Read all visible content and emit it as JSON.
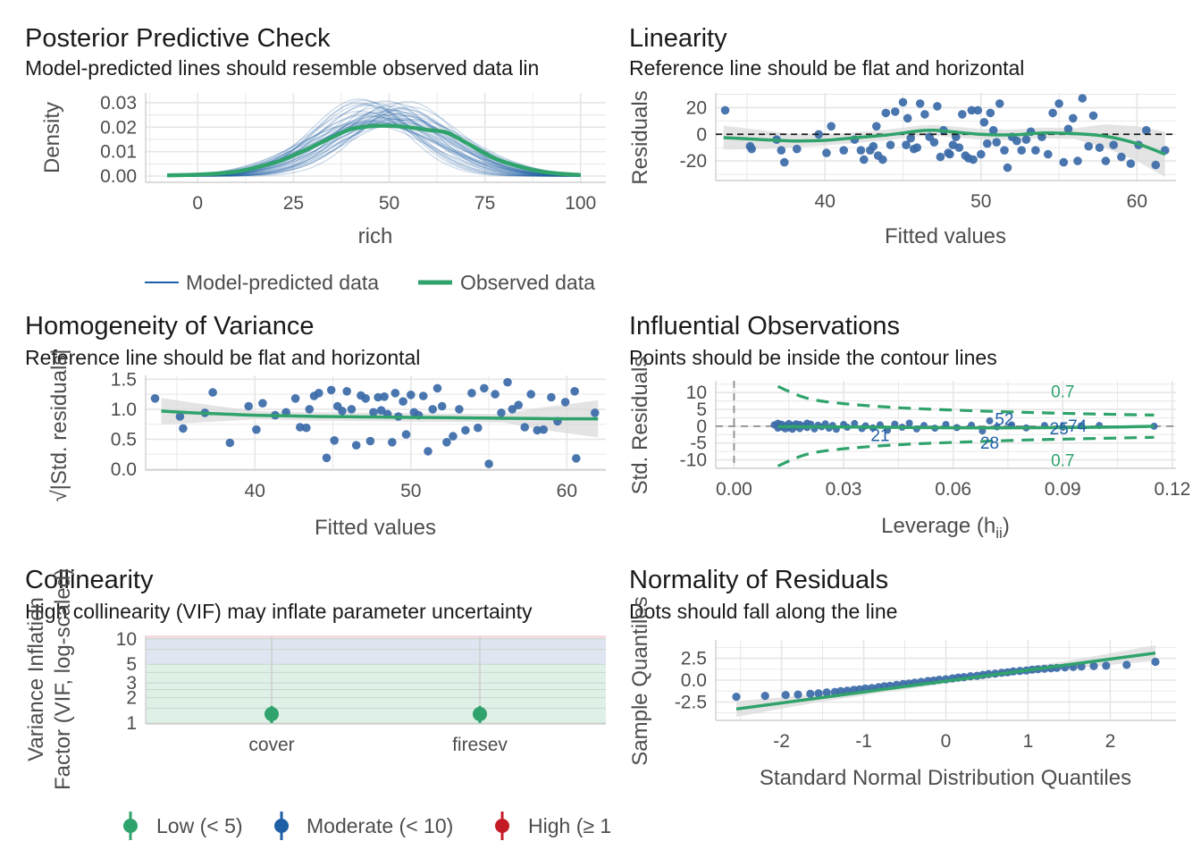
{
  "colors": {
    "model": "#1f5fa6",
    "observed": "#2fa36b",
    "point": "#3b6aa8",
    "band": "#d9d9d9",
    "low": "#2fa36b",
    "moderate": "#1f5fa6",
    "high": "#c41c26",
    "zone_low": "#dff0e6",
    "zone_mod": "#dfe6f1",
    "zone_high": "#f3dce0",
    "grid": "#e6e6e6"
  },
  "chart_data": [
    {
      "id": "ppc",
      "type": "line",
      "title": "Posterior Predictive Check",
      "subtitle": "Model-predicted lines should resemble observed data lin",
      "xlabel": "rich",
      "ylabel": "Density",
      "xlim": [
        -8,
        101
      ],
      "ylim": [
        0,
        0.034
      ],
      "xticks": [
        0,
        25,
        50,
        75,
        100
      ],
      "xtick_labels": [
        "0",
        "25",
        "50",
        "75",
        "100"
      ],
      "yticks": [
        0,
        0.01,
        0.02,
        0.03
      ],
      "ytick_labels": [
        "0.00",
        "0.01",
        "0.02",
        "0.03"
      ],
      "legend": [
        "Model-predicted data",
        "Observed data"
      ],
      "observed": {
        "x": [
          -8,
          0,
          10,
          20,
          25,
          30,
          35,
          40,
          45,
          50,
          55,
          60,
          65,
          70,
          75,
          80,
          90,
          100
        ],
        "y": [
          0.0003,
          0.0006,
          0.0018,
          0.0055,
          0.0085,
          0.012,
          0.0158,
          0.0192,
          0.0204,
          0.0206,
          0.02,
          0.0189,
          0.0178,
          0.0138,
          0.0093,
          0.0058,
          0.0018,
          0.0004
        ]
      },
      "model_draws": {
        "count": 40,
        "mean_peak": 0.0265,
        "peak_range": [
          0.019,
          0.034
        ],
        "center_range": [
          42,
          56
        ],
        "sd_range": [
          12,
          18
        ]
      }
    },
    {
      "id": "linearity",
      "type": "scatter",
      "title": "Linearity",
      "subtitle": "Reference line should be flat and horizontal",
      "xlabel": "Fitted values",
      "ylabel": "Residuals",
      "xlim": [
        33,
        62.5
      ],
      "ylim": [
        -32,
        31
      ],
      "xticks": [
        40,
        50,
        60
      ],
      "xtick_labels": [
        "40",
        "50",
        "60"
      ],
      "yticks": [
        -20,
        0,
        20
      ],
      "ytick_labels": [
        "-20",
        "0",
        "20"
      ],
      "reference": 0,
      "smooth": {
        "x": [
          33.5,
          36,
          38,
          40,
          42,
          44,
          46,
          47,
          48,
          50,
          52,
          54,
          56,
          58,
          60,
          61.8
        ],
        "y": [
          -2.5,
          -4,
          -5,
          -4.5,
          -2.5,
          -0.5,
          2.5,
          3,
          2,
          0,
          -0.5,
          1,
          0.5,
          -1.5,
          -7,
          -15
        ]
      },
      "points": {
        "x": [
          33.6,
          35.2,
          35.3,
          36.9,
          37.2,
          37.4,
          38.2,
          39.6,
          40.1,
          40.4,
          41.2,
          41.9,
          42.3,
          42.5,
          42.9,
          43.1,
          43.3,
          43.4,
          43.7,
          43.9,
          44.2,
          44.5,
          45,
          45.2,
          45.3,
          45.5,
          45.7,
          45.9,
          46.1,
          46.4,
          46.7,
          47,
          47.2,
          47.4,
          47.6,
          47.9,
          48,
          48.2,
          48.4,
          48.6,
          48.8,
          49,
          49.2,
          49.4,
          49.5,
          49.8,
          50,
          50.2,
          50.4,
          50.6,
          50.8,
          51,
          51.2,
          51.5,
          51.7,
          52,
          52.3,
          52.6,
          52.9,
          53.2,
          53.5,
          53.9,
          54.3,
          54.6,
          55,
          55.3,
          55.6,
          55.9,
          56.2,
          56.5,
          56.9,
          57.2,
          57.6,
          58,
          58.5,
          59,
          59.6,
          60.1,
          60.6,
          61.2,
          61.8
        ],
        "y": [
          18,
          -9,
          -11,
          -4,
          -12,
          -21,
          -11,
          0,
          -14,
          6,
          -12,
          -4,
          -12,
          -19,
          -12,
          -9,
          6,
          -16,
          -19,
          16,
          -8,
          17,
          24,
          -8,
          12,
          -3,
          -11,
          -10,
          23,
          15,
          -2,
          -6,
          21,
          -17,
          3,
          -14,
          -15,
          -8,
          -2,
          -10,
          15,
          -16,
          -18,
          18,
          -19,
          18,
          -15,
          9,
          -7,
          16,
          3,
          -6,
          23,
          -12,
          -25,
          -2,
          -5,
          -12,
          -4,
          2,
          -12,
          -2,
          -15,
          16,
          23,
          -21,
          4,
          12,
          -20,
          27,
          -9,
          14,
          -10,
          -20,
          -8,
          -17,
          -22,
          -8,
          3,
          -23,
          -12
        ]
      }
    },
    {
      "id": "homogeneity",
      "type": "scatter",
      "title": "Homogeneity of Variance",
      "subtitle": "Reference line should be flat and horizontal",
      "xlabel": "Fitted values",
      "ylabel": "√|Std. residuals|",
      "xlim": [
        33,
        62.5
      ],
      "ylim": [
        0,
        1.55
      ],
      "xticks": [
        40,
        50,
        60
      ],
      "xtick_labels": [
        "40",
        "50",
        "60"
      ],
      "yticks": [
        0,
        0.5,
        1,
        1.5
      ],
      "ytick_labels": [
        "0.0",
        "0.5",
        "1.0",
        "1.5"
      ],
      "smooth": {
        "x": [
          34,
          36,
          38,
          40,
          42,
          44,
          46,
          48,
          50,
          52,
          54,
          56,
          58,
          60,
          62
        ],
        "y": [
          0.97,
          0.94,
          0.92,
          0.9,
          0.89,
          0.88,
          0.875,
          0.87,
          0.865,
          0.86,
          0.855,
          0.85,
          0.845,
          0.84,
          0.84
        ]
      },
      "points": {
        "x": [
          33.6,
          35.2,
          35.4,
          36.8,
          37.3,
          38.4,
          39.6,
          40.1,
          40.5,
          41.3,
          42,
          42.6,
          42.9,
          43.3,
          43.5,
          43.8,
          44.1,
          44.6,
          44.9,
          45.1,
          45.3,
          45.6,
          45.9,
          46.2,
          46.5,
          46.8,
          47.1,
          47.4,
          47.6,
          47.9,
          48.1,
          48.3,
          48.5,
          48.8,
          49,
          49.2,
          49.5,
          49.7,
          50,
          50.2,
          50.5,
          50.8,
          51.1,
          51.4,
          51.7,
          52,
          52.3,
          52.7,
          53.1,
          53.5,
          53.9,
          54.3,
          54.7,
          55,
          55.4,
          55.8,
          56.2,
          56.5,
          56.9,
          57.3,
          57.7,
          58.1,
          58.5,
          59,
          59.4,
          59.9,
          60.5,
          60.6,
          61.8
        ],
        "y": [
          1.18,
          0.88,
          0.68,
          0.94,
          1.28,
          0.44,
          1.05,
          0.66,
          1.1,
          0.9,
          0.95,
          1.18,
          0.7,
          0.69,
          1.0,
          1.22,
          1.27,
          0.19,
          1.32,
          0.48,
          1.05,
          0.97,
          1.3,
          1.0,
          0.4,
          1.23,
          1.18,
          0.47,
          0.95,
          1.2,
          0.98,
          1.21,
          0.92,
          0.45,
          1.27,
          0.88,
          1.13,
          0.58,
          1.24,
          0.95,
          0.9,
          1.22,
          0.3,
          1.0,
          1.35,
          1.05,
          0.45,
          0.55,
          1.0,
          0.65,
          1.27,
          0.69,
          1.35,
          0.09,
          1.25,
          0.94,
          1.45,
          1.0,
          1.07,
          0.7,
          1.25,
          0.65,
          0.66,
          1.2,
          0.8,
          1.12,
          1.3,
          0.18,
          0.94
        ]
      }
    },
    {
      "id": "influence",
      "type": "scatter",
      "title": "Influential Observations",
      "subtitle": "Points should be inside the contour lines",
      "xlabel": "Leverage (h",
      "xlabel_sub": "ii",
      "xlabel_end": ")",
      "ylabel": "Std. Residuals",
      "xlim": [
        -0.005,
        0.121
      ],
      "ylim": [
        -12.5,
        13.5
      ],
      "xticks": [
        0,
        0.03,
        0.06,
        0.09,
        0.12
      ],
      "xtick_labels": [
        "0.00",
        "0.03",
        "0.06",
        "0.09",
        "0.12"
      ],
      "yticks": [
        -10,
        -5,
        0,
        5,
        10
      ],
      "ytick_labels": [
        "-10",
        "-5",
        "0",
        "5",
        "10"
      ],
      "contour_label": "0.7",
      "contour_x": [
        0.012,
        0.02,
        0.03,
        0.045,
        0.06,
        0.08,
        0.1,
        0.115
      ],
      "contour_y": [
        11.8,
        8.3,
        6.7,
        5.5,
        4.8,
        4.1,
        3.6,
        3.3
      ],
      "smooth": {
        "x": [
          0.012,
          0.04,
          0.07,
          0.1,
          0.115
        ],
        "y": [
          -0.1,
          -0.3,
          -0.5,
          -0.3,
          0
        ]
      },
      "labels": [
        {
          "text": "52",
          "x": 0.074,
          "y": 2.2
        },
        {
          "text": "25",
          "x": 0.089,
          "y": -0.6
        },
        {
          "text": "74",
          "x": 0.094,
          "y": 0.2
        },
        {
          "text": "21",
          "x": 0.04,
          "y": -2.6
        },
        {
          "text": "28",
          "x": 0.07,
          "y": -4.8
        }
      ],
      "points": {
        "x": [
          0.011,
          0.012,
          0.012,
          0.013,
          0.013,
          0.014,
          0.014,
          0.015,
          0.015,
          0.016,
          0.016,
          0.017,
          0.017,
          0.018,
          0.018,
          0.019,
          0.02,
          0.02,
          0.021,
          0.022,
          0.023,
          0.024,
          0.025,
          0.026,
          0.027,
          0.028,
          0.03,
          0.031,
          0.033,
          0.035,
          0.036,
          0.038,
          0.04,
          0.042,
          0.044,
          0.046,
          0.048,
          0.05,
          0.052,
          0.055,
          0.058,
          0.061,
          0.065,
          0.068,
          0.07,
          0.072,
          0.076,
          0.08,
          0.085,
          0.09,
          0.095,
          0.1,
          0.115
        ],
        "y": [
          0.4,
          -0.6,
          0.9,
          -0.3,
          0.6,
          -0.8,
          0.2,
          0.8,
          -0.5,
          0.3,
          -0.9,
          0.7,
          -0.2,
          0.5,
          -0.7,
          0.1,
          0.9,
          -0.4,
          0.6,
          -0.8,
          0.3,
          -0.2,
          0.7,
          -0.6,
          0.2,
          -0.9,
          0.5,
          -0.3,
          0.8,
          -0.7,
          0.1,
          -0.5,
          0.4,
          -1.2,
          0.6,
          -0.3,
          0.9,
          -0.8,
          0.2,
          -0.6,
          0.5,
          -0.4,
          0.3,
          -1.4,
          1.6,
          -0.2,
          0.4,
          -0.5,
          0.2,
          -0.3,
          0.1,
          0.2,
          0
        ]
      }
    },
    {
      "id": "collinearity",
      "type": "scatter",
      "title": "Collinearity",
      "subtitle": "High collinearity (VIF) may inflate parameter uncertainty",
      "xlabel": "",
      "ylabel": "Variance Inflation\nFactor (VIF, log-scaled)",
      "y_scale": "log",
      "ylim": [
        1,
        11
      ],
      "yticks": [
        1,
        2,
        3,
        5,
        10
      ],
      "ytick_labels": [
        "1",
        "2",
        "3",
        "5",
        "10"
      ],
      "categories": [
        "cover",
        "firesev"
      ],
      "values": [
        1.28,
        1.28
      ],
      "ci_upper": [
        1.6,
        1.6
      ],
      "ci_lower": [
        1.0,
        1.0
      ],
      "legend": [
        "Low (< 5)",
        "Moderate (< 10)",
        "High (≥ 1"
      ]
    },
    {
      "id": "qq",
      "type": "scatter",
      "title": "Normality of Residuals",
      "subtitle": "Dots should fall along the line",
      "xlabel": "Standard Normal Distribution Quantiles",
      "ylabel": "Sample Quantiles",
      "xlim": [
        -2.8,
        2.8
      ],
      "ylim": [
        -4.6,
        4.6
      ],
      "xticks": [
        -2,
        -1,
        0,
        1,
        2
      ],
      "xtick_labels": [
        "-2",
        "-1",
        "0",
        "1",
        "2"
      ],
      "yticks": [
        -2.5,
        0,
        2.5
      ],
      "ytick_labels": [
        "-2.5",
        "0.0",
        "2.5"
      ],
      "line": {
        "x": [
          -2.55,
          2.55
        ],
        "y": [
          -3.3,
          3.1
        ]
      },
      "points": {
        "x": [
          -2.55,
          -2.2,
          -1.95,
          -1.8,
          -1.65,
          -1.55,
          -1.45,
          -1.35,
          -1.28,
          -1.2,
          -1.12,
          -1.05,
          -0.98,
          -0.9,
          -0.82,
          -0.75,
          -0.68,
          -0.6,
          -0.52,
          -0.45,
          -0.38,
          -0.3,
          -0.22,
          -0.15,
          -0.08,
          0,
          0.08,
          0.15,
          0.22,
          0.3,
          0.38,
          0.45,
          0.52,
          0.6,
          0.68,
          0.75,
          0.82,
          0.9,
          0.98,
          1.05,
          1.12,
          1.2,
          1.28,
          1.35,
          1.45,
          1.55,
          1.65,
          1.8,
          1.95,
          2.2,
          2.55
        ],
        "y": [
          -1.9,
          -1.8,
          -1.7,
          -1.65,
          -1.55,
          -1.5,
          -1.4,
          -1.35,
          -1.25,
          -1.2,
          -1.1,
          -1.05,
          -0.95,
          -0.9,
          -0.8,
          -0.7,
          -0.65,
          -0.55,
          -0.45,
          -0.4,
          -0.3,
          -0.2,
          -0.1,
          -0.05,
          0.05,
          0.1,
          0.2,
          0.3,
          0.35,
          0.45,
          0.5,
          0.6,
          0.7,
          0.75,
          0.85,
          0.9,
          1.0,
          1.05,
          1.1,
          1.2,
          1.25,
          1.3,
          1.35,
          1.4,
          1.45,
          1.5,
          1.55,
          1.6,
          1.65,
          1.75,
          2.1
        ]
      }
    }
  ]
}
